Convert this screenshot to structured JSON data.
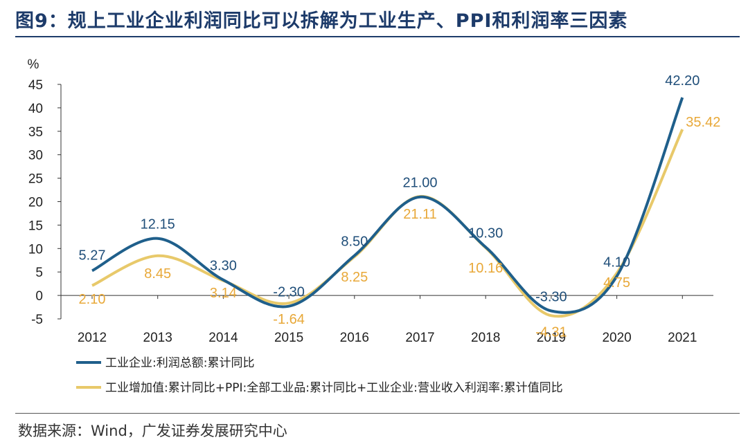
{
  "title": "图9：规上工业企业利润同比可以拆解为工业生产、PPI和利润率三因素",
  "source": "数据来源：Wind，广发证券发展研究中心",
  "colors": {
    "series1": "#1f5f8b",
    "series2": "#e8c96a",
    "label2": "#e8a838",
    "title": "#1d3b6a"
  },
  "chart_data": {
    "type": "line",
    "title": "规上工业企业利润同比可以拆解为工业生产、PPI和利润率三因素",
    "ylabel": "%",
    "xlabel": "",
    "ylim": [
      -5,
      45
    ],
    "yticks": [
      -5,
      0,
      5,
      10,
      15,
      20,
      25,
      30,
      35,
      40,
      45
    ],
    "categories": [
      "2012",
      "2013",
      "2014",
      "2015",
      "2016",
      "2017",
      "2018",
      "2019",
      "2020",
      "2021"
    ],
    "series": [
      {
        "name": "工业企业:利润总额:累计同比",
        "values": [
          5.27,
          12.15,
          3.3,
          -2.3,
          8.5,
          21.0,
          10.3,
          -3.3,
          4.1,
          42.2
        ],
        "labels": [
          "5.27",
          "12.15",
          "3.30",
          "-2.30",
          "8.50",
          "21.00",
          "10.30",
          "-3.30",
          "4.10",
          "42.20"
        ]
      },
      {
        "name": "工业增加值:累计同比+PPI:全部工业品:累计同比+工业企业:营业收入利润率:累计值同比",
        "values": [
          2.1,
          8.45,
          3.14,
          -1.64,
          8.25,
          21.11,
          10.16,
          -4.31,
          4.75,
          35.42
        ],
        "labels": [
          "2.10",
          "8.45",
          "3.14",
          "-1.64",
          "8.25",
          "21.11",
          "10.16",
          "-4.31",
          "4.75",
          "35.42"
        ]
      }
    ],
    "legend_position": "bottom-left",
    "grid": false
  }
}
